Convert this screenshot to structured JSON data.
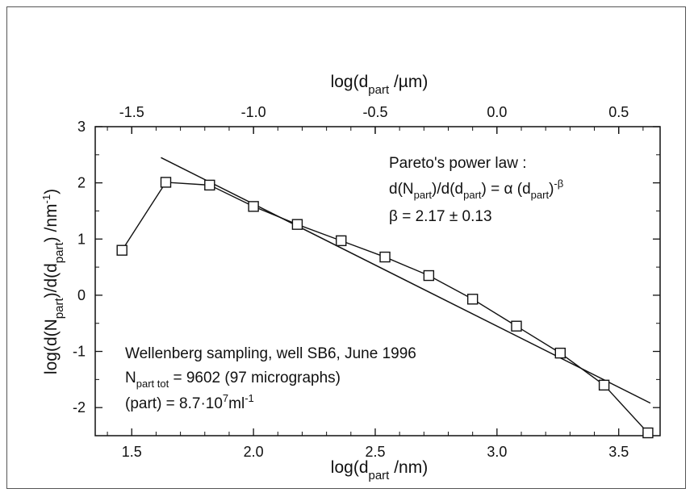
{
  "chart_data": {
    "type": "scatter",
    "xlabel": {
      "pre": "log(d",
      "sub": "part",
      "post": " /nm)"
    },
    "x2label": {
      "pre": "log(d",
      "sub": "part",
      "post": " /µm)"
    },
    "ylabel": {
      "pre": "log(d(N",
      "sub1": "part",
      "mid": ")/d(d",
      "sub2": "part",
      "post": ")  /nm",
      "sup": "-1",
      "end": ")"
    },
    "xlim": [
      1.35,
      3.67
    ],
    "ylim": [
      -2.5,
      3.0
    ],
    "x2lim": [
      -1.65,
      0.67
    ],
    "xticks": [
      "1.5",
      "2.0",
      "2.5",
      "3.0",
      "3.5"
    ],
    "x2ticks": [
      "-1.5",
      "-1.0",
      "-0.5",
      "0.0",
      "0.5"
    ],
    "yticks": [
      "3",
      "2",
      "1",
      "0",
      "-1",
      "-2"
    ],
    "series": [
      {
        "marker": "open-square",
        "x": [
          1.46,
          1.64,
          1.82,
          2.0,
          2.18,
          2.36,
          2.54,
          2.72,
          2.9,
          3.08,
          3.26,
          3.44,
          3.62
        ],
        "y": [
          0.8,
          2.01,
          1.96,
          1.58,
          1.26,
          0.97,
          0.68,
          0.35,
          -0.07,
          -0.55,
          -1.03,
          -1.6,
          -2.45
        ]
      },
      {
        "style": "fit-line",
        "x": [
          1.62,
          3.63
        ],
        "y": [
          2.45,
          -1.92
        ]
      }
    ],
    "annotation_fit": {
      "line1": "Pareto's power law :",
      "l2a": "d(N",
      "l2s1": "part",
      "l2b": ")/d(d",
      "l2s2": "part",
      "l2c": ") = α (d",
      "l2s3": "part",
      "l2d": ")",
      "l2sup": "-β",
      "line3": "β = 2.17 ± 0.13"
    },
    "annotation_sample": {
      "line1": "Wellenberg sampling, well SB6, June 1996",
      "l2a": "N",
      "l2sub": "part tot",
      "l2b": " = 9602 (97 micrographs)",
      "l3a": "(part) = 8.7·10",
      "l3sup1": "7",
      "l3b": "ml",
      "l3sup2": "-1"
    }
  }
}
